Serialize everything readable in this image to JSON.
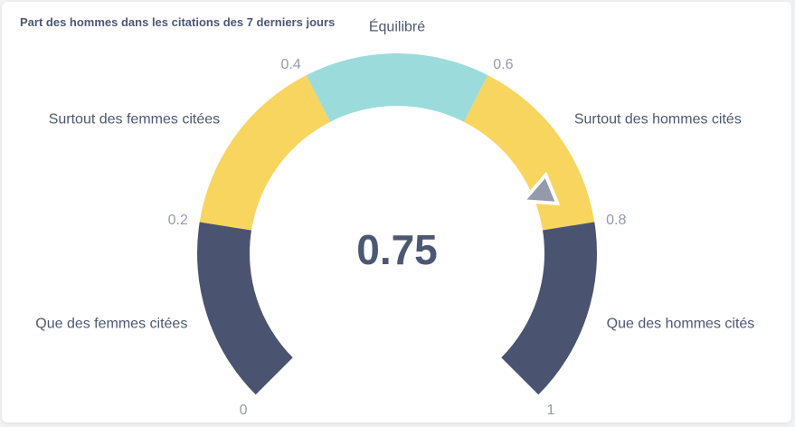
{
  "card": {
    "title": "Part des hommes dans les citations des 7 derniers jours"
  },
  "chart_data": {
    "type": "gauge",
    "value": 0.75,
    "value_label": "0.75",
    "range": [
      0,
      1
    ],
    "sweep_degrees": 270,
    "bands": [
      {
        "from": 0,
        "to": 0.2,
        "label": "Que des femmes citées",
        "color": "#4a5470"
      },
      {
        "from": 0.2,
        "to": 0.4,
        "label": "Surtout des femmes citées",
        "color": "#f8d55f"
      },
      {
        "from": 0.4,
        "to": 0.6,
        "label": "Équilibré",
        "color": "#9bdbdb"
      },
      {
        "from": 0.6,
        "to": 0.8,
        "label": "Surtout des hommes cités",
        "color": "#f8d55f"
      },
      {
        "from": 0.8,
        "to": 1,
        "label": "Que des hommes cités",
        "color": "#4a5470"
      }
    ],
    "ticks": [
      {
        "value": 0,
        "label": "0"
      },
      {
        "value": 0.2,
        "label": "0.2"
      },
      {
        "value": 0.4,
        "label": "0.4"
      },
      {
        "value": 0.6,
        "label": "0.6"
      },
      {
        "value": 0.8,
        "label": "0.8"
      },
      {
        "value": 1,
        "label": "1"
      }
    ],
    "needle_color": "#949aab"
  }
}
